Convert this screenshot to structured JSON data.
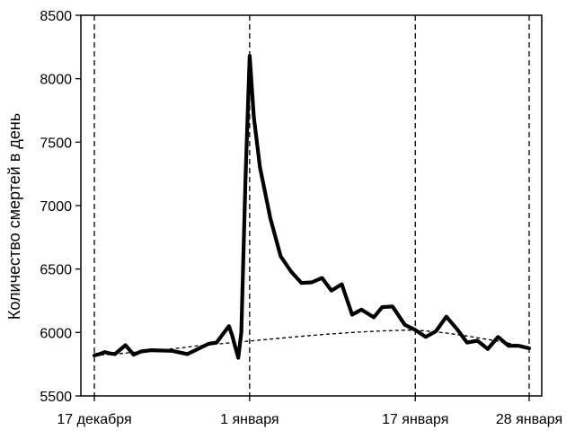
{
  "chart_data": {
    "type": "line",
    "ylabel": "Количество смертей в день",
    "ylim": [
      5500,
      8500
    ],
    "yticks": [
      5500,
      6000,
      6500,
      7000,
      7500,
      8000,
      8500
    ],
    "x_start": "17 декабря",
    "x_range_days": [
      0,
      42
    ],
    "xticks": [
      {
        "day": 0,
        "label": "17 декабря"
      },
      {
        "day": 15,
        "label": "1 января"
      },
      {
        "day": 31,
        "label": "17 января"
      },
      {
        "day": 42,
        "label": "28 января"
      }
    ],
    "reference_lines_days": [
      0,
      15,
      31,
      42
    ],
    "grid": false,
    "legend": "none",
    "series": [
      {
        "style": "thick-solid",
        "values": [
          [
            0,
            5820
          ],
          [
            0.5,
            5830
          ],
          [
            1,
            5845
          ],
          [
            1.5,
            5835
          ],
          [
            2,
            5830
          ],
          [
            3,
            5900
          ],
          [
            3.8,
            5825
          ],
          [
            4.5,
            5850
          ],
          [
            5.5,
            5860
          ],
          [
            7.5,
            5855
          ],
          [
            9,
            5830
          ],
          [
            10,
            5870
          ],
          [
            11,
            5910
          ],
          [
            11.8,
            5920
          ],
          [
            13,
            6050
          ],
          [
            13.3,
            5980
          ],
          [
            13.9,
            5800
          ],
          [
            14.2,
            6000
          ],
          [
            14.6,
            7200
          ],
          [
            15,
            8180
          ],
          [
            15.4,
            7700
          ],
          [
            16,
            7300
          ],
          [
            17,
            6900
          ],
          [
            18,
            6600
          ],
          [
            19,
            6480
          ],
          [
            20,
            6390
          ],
          [
            21,
            6395
          ],
          [
            22,
            6430
          ],
          [
            22.9,
            6330
          ],
          [
            23.9,
            6380
          ],
          [
            24.9,
            6140
          ],
          [
            25.8,
            6180
          ],
          [
            27,
            6120
          ],
          [
            27.8,
            6200
          ],
          [
            28.8,
            6205
          ],
          [
            30,
            6060
          ],
          [
            31,
            6020
          ],
          [
            32,
            5965
          ],
          [
            33,
            6010
          ],
          [
            34,
            6125
          ],
          [
            35,
            6030
          ],
          [
            36,
            5920
          ],
          [
            37,
            5935
          ],
          [
            38,
            5870
          ],
          [
            39,
            5965
          ],
          [
            40,
            5895
          ],
          [
            41,
            5895
          ],
          [
            42,
            5875
          ]
        ]
      },
      {
        "style": "dashed-trend",
        "values": [
          [
            0,
            5820
          ],
          [
            2,
            5830
          ],
          [
            4,
            5845
          ],
          [
            6,
            5860
          ],
          [
            8,
            5875
          ],
          [
            10,
            5895
          ],
          [
            12,
            5910
          ],
          [
            14,
            5925
          ],
          [
            16,
            5940
          ],
          [
            18,
            5955
          ],
          [
            20,
            5970
          ],
          [
            22,
            5983
          ],
          [
            24,
            5995
          ],
          [
            26,
            6005
          ],
          [
            28,
            6013
          ],
          [
            30,
            6018
          ],
          [
            31,
            6018
          ],
          [
            32,
            6012
          ],
          [
            34,
            5995
          ],
          [
            36,
            5972
          ],
          [
            38,
            5945
          ],
          [
            40,
            5915
          ],
          [
            42,
            5885
          ]
        ]
      }
    ]
  }
}
